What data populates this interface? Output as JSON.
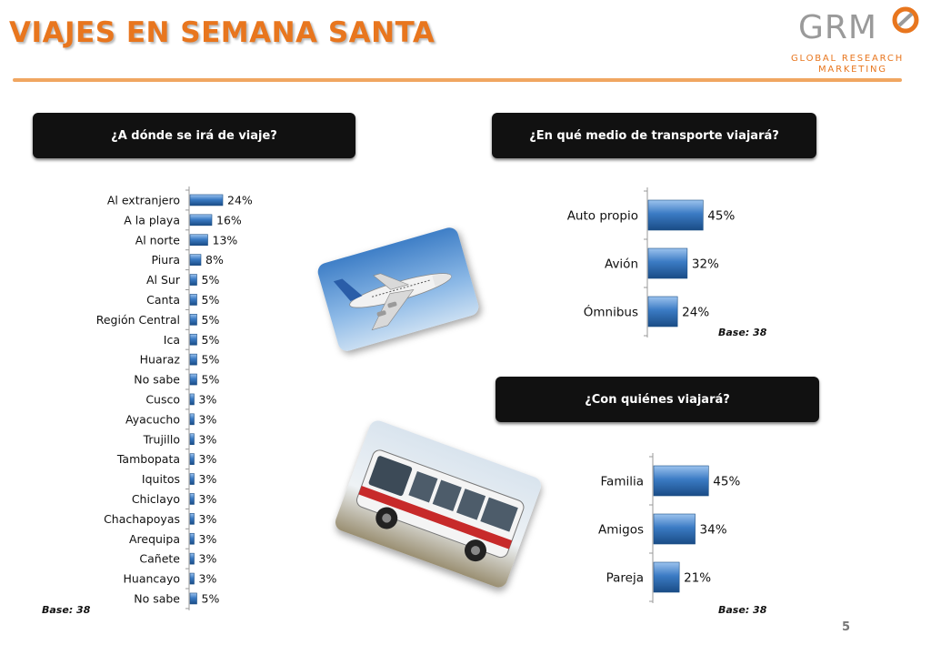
{
  "header": {
    "title": "VIAJES EN SEMANA SANTA",
    "logo_text": "GRM",
    "logo_line1": "GLOBAL RESEARCH",
    "logo_line2": "MARKETING"
  },
  "page_number": "5",
  "colors": {
    "accent": "#e8761e",
    "bar": "#2e6fb8",
    "banner": "#111111"
  },
  "photos": {
    "plane": "airplane-photo",
    "bus": "bus-photo"
  },
  "chart_data": [
    {
      "type": "bar",
      "orientation": "horizontal",
      "title": "¿A dónde se irá de viaje?",
      "categories": [
        "Al extranjero",
        "A la playa",
        "Al norte",
        "Piura",
        "Al Sur",
        "Canta",
        "Región Central",
        "Ica",
        "Huaraz",
        "No sabe",
        "Cusco",
        "Ayacucho",
        "Trujillo",
        "Tambopata",
        "Iquitos",
        "Chiclayo",
        "Chachapoyas",
        "Arequipa",
        "Cañete",
        "Huancayo",
        "No sabe"
      ],
      "values": [
        24,
        16,
        13,
        8,
        5,
        5,
        5,
        5,
        5,
        5,
        3,
        3,
        3,
        3,
        3,
        3,
        3,
        3,
        3,
        3,
        5
      ],
      "value_labels": [
        "24%",
        "16%",
        "13%",
        "8%",
        "5%",
        "5%",
        "5%",
        "5%",
        "5%",
        "5%",
        "3%",
        "3%",
        "3%",
        "3%",
        "3%",
        "3%",
        "3%",
        "3%",
        "3%",
        "3%",
        "5%"
      ],
      "base": "Base: 38"
    },
    {
      "type": "bar",
      "orientation": "horizontal",
      "title": "¿En qué medio de transporte viajará?",
      "categories": [
        "Auto propio",
        "Avión",
        "Ómnibus"
      ],
      "values": [
        45,
        32,
        24
      ],
      "value_labels": [
        "45%",
        "32%",
        "24%"
      ],
      "base": "Base: 38"
    },
    {
      "type": "bar",
      "orientation": "horizontal",
      "title": "¿Con quiénes viajará?",
      "categories": [
        "Familia",
        "Amigos",
        "Pareja"
      ],
      "values": [
        45,
        34,
        21
      ],
      "value_labels": [
        "45%",
        "34%",
        "21%"
      ],
      "base": "Base: 38"
    }
  ]
}
